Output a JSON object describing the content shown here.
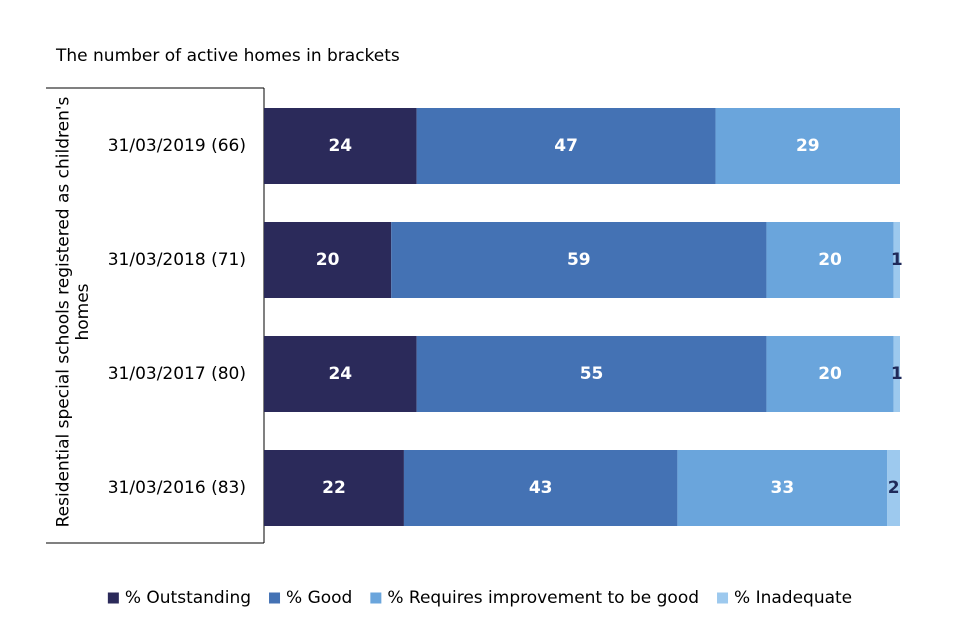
{
  "chart_data": {
    "type": "bar",
    "orientation": "horizontal",
    "stacked": true,
    "subtitle": "The number of active homes in brackets",
    "ylabel": "Residential special schools registered as children's homes",
    "categories": [
      "31/03/2019 (66)",
      "31/03/2018 (71)",
      "31/03/2017 (80)",
      "31/03/2016 (83)"
    ],
    "xlim": [
      0,
      100
    ],
    "grid": false,
    "legend_position": "bottom",
    "series": [
      {
        "name": "% Outstanding",
        "color": "#2b2a5a",
        "label_color": "#ffffff",
        "values": [
          24,
          20,
          24,
          22
        ]
      },
      {
        "name": "% Good",
        "color": "#4472b4",
        "label_color": "#ffffff",
        "values": [
          47,
          59,
          55,
          43
        ]
      },
      {
        "name": "% Requires improvement to be good",
        "color": "#6aa5dc",
        "label_color": "#ffffff",
        "values": [
          29,
          20,
          20,
          33
        ]
      },
      {
        "name": "% Inadequate",
        "color": "#9dc9ee",
        "label_color": "#1f2a5a",
        "values": [
          0,
          1,
          1,
          2
        ]
      }
    ]
  }
}
